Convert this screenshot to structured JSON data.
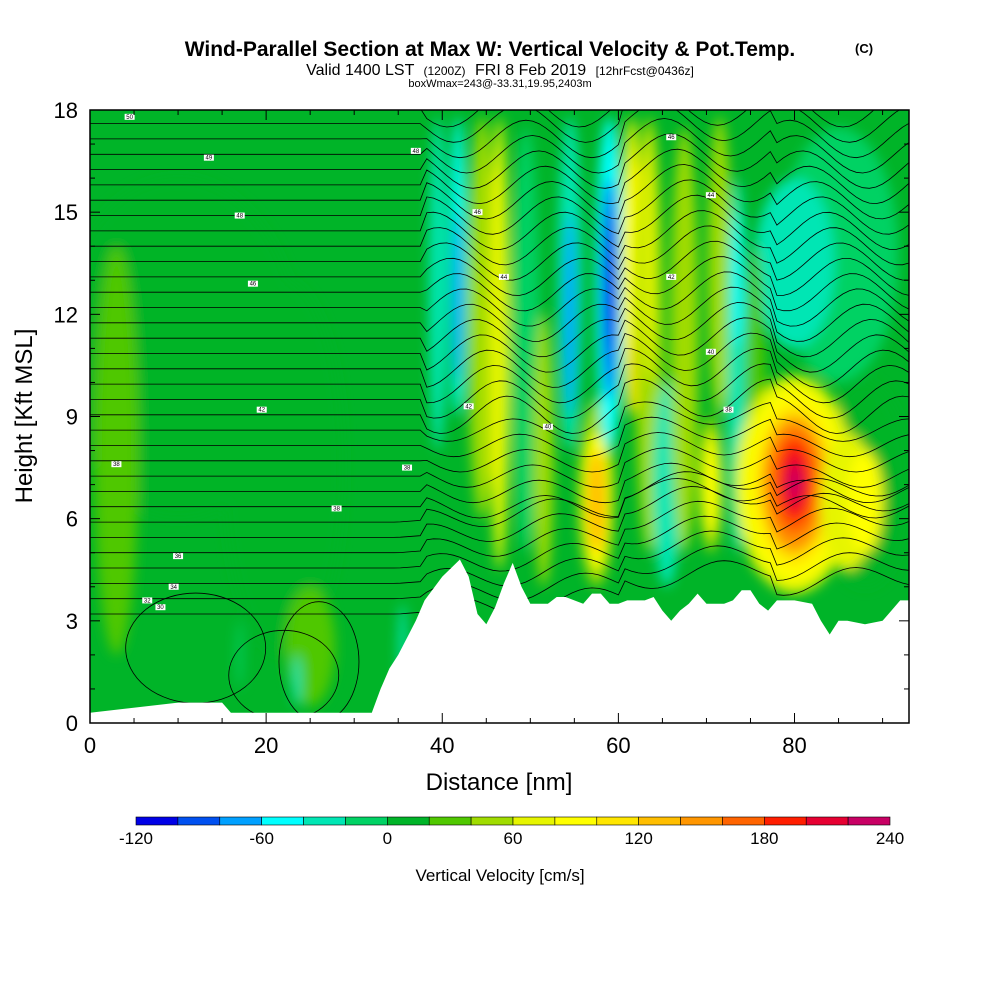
{
  "chart_data": {
    "type": "heatmap",
    "title": "Wind-Parallel Section at Max W: Vertical Velocity & Pot.Temp.",
    "title_mark": "(C)",
    "subtitle": {
      "valid": "Valid 1400 LST",
      "zulu": "(1200Z)",
      "date": "FRI 8 Feb 2019",
      "forecast": "[12hrFcst@0436z]"
    },
    "box_info": "boxWmax=243@-33.31,19.95,2403m",
    "xlabel": "Distance [nm]",
    "ylabel": "Height [Kft MSL]",
    "xlim": [
      0,
      93
    ],
    "ylim": [
      0,
      18
    ],
    "x_ticks": [
      0,
      20,
      40,
      60,
      80
    ],
    "y_ticks": [
      0,
      3,
      6,
      9,
      12,
      15,
      18
    ],
    "colorbar": {
      "label": "Vertical Velocity [cm/s]",
      "levels": [
        -120,
        -100,
        -80,
        -60,
        -40,
        -20,
        0,
        20,
        40,
        60,
        80,
        100,
        120,
        140,
        160,
        180,
        200,
        220,
        240
      ],
      "tick_labels": [
        "-120",
        "-60",
        "0",
        "60",
        "120",
        "180",
        "240"
      ],
      "tick_values": [
        -120,
        -60,
        0,
        60,
        120,
        180,
        240
      ],
      "colors": [
        "#0000e6",
        "#0050f0",
        "#00a0ff",
        "#00ffff",
        "#00e6b4",
        "#00d264",
        "#00b428",
        "#50c800",
        "#a0dc00",
        "#e6f500",
        "#ffff00",
        "#ffe600",
        "#ffbe00",
        "#ff9600",
        "#ff6400",
        "#ff1e00",
        "#e60032",
        "#c80064"
      ]
    },
    "updraft_cores": [
      {
        "x": 57.5,
        "y": 6.5,
        "w": 120
      },
      {
        "x": 70.5,
        "y": 7.2,
        "w": 80
      },
      {
        "x": 80.0,
        "y": 7.0,
        "w": 243
      }
    ],
    "downdraft_cores": [
      {
        "x": 41.8,
        "y": 12.5,
        "w": -80
      },
      {
        "x": 54.5,
        "y": 12.0,
        "w": -100
      },
      {
        "x": 59.0,
        "y": 13.5,
        "w": -120
      }
    ],
    "terrain_profile": {
      "x": [
        0,
        10,
        11,
        15,
        16,
        32,
        33,
        34,
        35,
        36,
        37,
        38,
        40,
        42,
        43,
        44,
        45,
        46,
        47,
        48,
        49,
        50,
        51,
        52,
        53,
        54,
        56,
        57,
        58,
        59,
        60,
        61,
        62,
        63,
        64,
        65,
        66,
        67,
        68,
        69,
        70,
        71,
        72,
        73,
        74,
        75,
        76,
        77,
        78,
        80,
        82,
        83,
        84,
        85,
        86,
        88,
        90,
        91,
        92,
        93
      ],
      "y": [
        0.3,
        0.6,
        0.6,
        0.6,
        0.3,
        0.3,
        1.0,
        1.6,
        2.0,
        2.5,
        3.0,
        3.6,
        4.3,
        4.8,
        4.3,
        3.2,
        2.9,
        3.4,
        4.1,
        4.7,
        4.0,
        3.5,
        3.5,
        3.5,
        3.7,
        3.7,
        3.5,
        3.8,
        3.8,
        3.5,
        3.5,
        3.6,
        3.6,
        3.6,
        3.7,
        3.3,
        3.0,
        3.3,
        3.5,
        3.8,
        3.5,
        3.5,
        3.5,
        3.6,
        3.9,
        3.9,
        3.5,
        3.3,
        3.6,
        3.6,
        3.5,
        3.0,
        2.6,
        3.0,
        3.0,
        2.9,
        3.0,
        3.3,
        3.6,
        3.6
      ]
    },
    "theta_contour_labels": [
      {
        "text": "50",
        "x": 4.5,
        "y": 17.8
      },
      {
        "text": "49",
        "x": 13.5,
        "y": 16.6
      },
      {
        "text": "48",
        "x": 17.0,
        "y": 14.9
      },
      {
        "text": "46",
        "x": 18.5,
        "y": 12.9
      },
      {
        "text": "42",
        "x": 19.5,
        "y": 9.2
      },
      {
        "text": "38",
        "x": 3.0,
        "y": 7.6
      },
      {
        "text": "38",
        "x": 28.0,
        "y": 6.3
      },
      {
        "text": "36",
        "x": 10.0,
        "y": 4.9
      },
      {
        "text": "34",
        "x": 9.5,
        "y": 4.0
      },
      {
        "text": "32",
        "x": 6.5,
        "y": 3.6
      },
      {
        "text": "30",
        "x": 8.0,
        "y": 3.4
      },
      {
        "text": "48",
        "x": 37.0,
        "y": 16.8
      },
      {
        "text": "46",
        "x": 44.0,
        "y": 15.0
      },
      {
        "text": "44",
        "x": 47.0,
        "y": 13.1
      },
      {
        "text": "42",
        "x": 43.0,
        "y": 9.3
      },
      {
        "text": "38",
        "x": 36.0,
        "y": 7.5
      },
      {
        "text": "40",
        "x": 52.0,
        "y": 8.7
      },
      {
        "text": "46",
        "x": 66.0,
        "y": 17.2
      },
      {
        "text": "44",
        "x": 70.5,
        "y": 15.5
      },
      {
        "text": "42",
        "x": 66.0,
        "y": 13.1
      },
      {
        "text": "40",
        "x": 70.5,
        "y": 10.9
      },
      {
        "text": "38",
        "x": 72.5,
        "y": 9.2
      }
    ]
  }
}
